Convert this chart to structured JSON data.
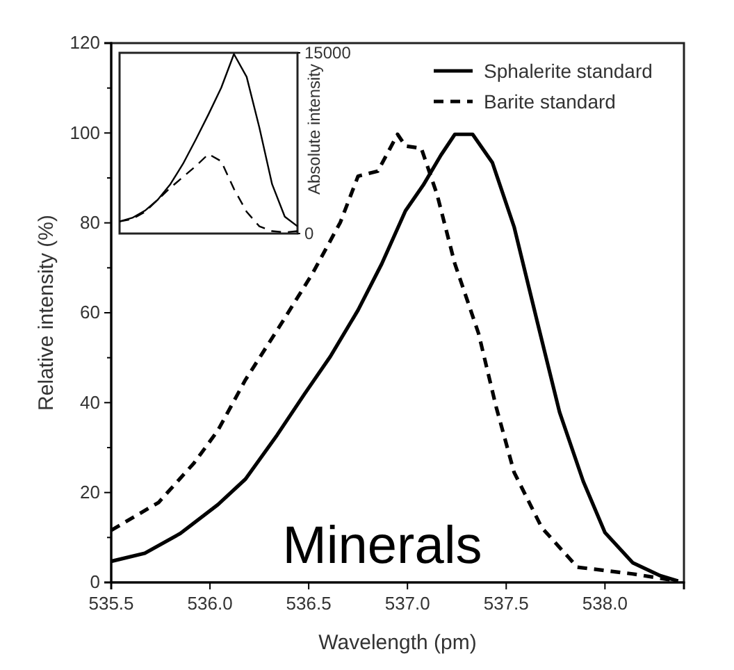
{
  "chart_data": [
    {
      "type": "line",
      "xlabel": "Wavelength (pm)",
      "ylabel": "Relative intensity (%)",
      "annotations": [
        "Minerals"
      ],
      "legend": "top right",
      "xlim": [
        535.5,
        538.4
      ],
      "xticks": [
        535.5,
        {
          "value": 536,
          "label": "536.0"
        },
        536.5,
        {
          "value": 537,
          "label": "537.0"
        },
        537.5,
        {
          "value": 538,
          "label": "538.0"
        }
      ],
      "ylim": [
        0,
        120
      ],
      "yticks": [
        0,
        {
          "value": 10,
          "label": null
        },
        20,
        {
          "value": 30,
          "label": null
        },
        40,
        {
          "value": 50,
          "label": null
        },
        60,
        {
          "value": 70,
          "label": null
        },
        80,
        {
          "value": 90,
          "label": null
        },
        100,
        {
          "value": 110,
          "label": null
        },
        120
      ],
      "series": [
        {
          "name": "Sphalerite standard",
          "color": "#000000",
          "line_style": "solid",
          "x": [
            535.5,
            535.67,
            535.85,
            536.04,
            536.18,
            536.34,
            536.48,
            536.61,
            536.75,
            536.87,
            536.99,
            537.08,
            537.17,
            537.24,
            537.33,
            537.43,
            537.54,
            537.66,
            537.77,
            537.89,
            538.0,
            538.14,
            538.28,
            538.37
          ],
          "values": [
            4.7,
            6.5,
            10.9,
            17.3,
            23,
            32.8,
            42,
            50.3,
            60.6,
            70.9,
            82.7,
            88.4,
            95.1,
            99.7,
            99.7,
            93.4,
            79.1,
            57.5,
            37.9,
            22.5,
            11.1,
            4.4,
            1.5,
            0.3
          ]
        },
        {
          "name": "Barite standard",
          "color": "#000000",
          "line_style": "dashed",
          "x": [
            535.5,
            535.74,
            535.92,
            536.04,
            536.18,
            536.36,
            536.52,
            536.66,
            536.75,
            536.85,
            536.95,
            536.99,
            537.07,
            537.15,
            537.24,
            537.36,
            537.45,
            537.54,
            537.68,
            537.86,
            538.14,
            538.37
          ],
          "values": [
            11.6,
            17.8,
            26.6,
            33.8,
            45.1,
            57.5,
            68.8,
            80.1,
            90.4,
            91.5,
            99.7,
            97.1,
            96.6,
            86.3,
            70.9,
            55.4,
            38.9,
            24.5,
            12.2,
            3.4,
            1.9,
            0.3
          ]
        }
      ]
    },
    {
      "type": "line",
      "ylabel": "Absolute intensity",
      "tick_labels": "y",
      "categories": [
        null,
        null,
        null,
        null,
        null,
        null,
        null,
        null,
        null,
        null,
        null,
        null,
        null,
        null,
        null
      ],
      "ylim": [
        0,
        15000
      ],
      "yticks": [
        0,
        15000
      ],
      "series": [
        {
          "color": "#000000",
          "line_style": "solid",
          "values": [
            1000,
            1300,
            1900,
            2800,
            4100,
            5800,
            7800,
            9900,
            12100,
            14900,
            13000,
            8800,
            4100,
            1400,
            600
          ]
        },
        {
          "color": "#000000",
          "line_style": "dashed",
          "values": [
            1000,
            1200,
            1800,
            2800,
            3800,
            4700,
            5600,
            6600,
            6000,
            3700,
            1800,
            600,
            200,
            100,
            200
          ]
        }
      ]
    }
  ]
}
